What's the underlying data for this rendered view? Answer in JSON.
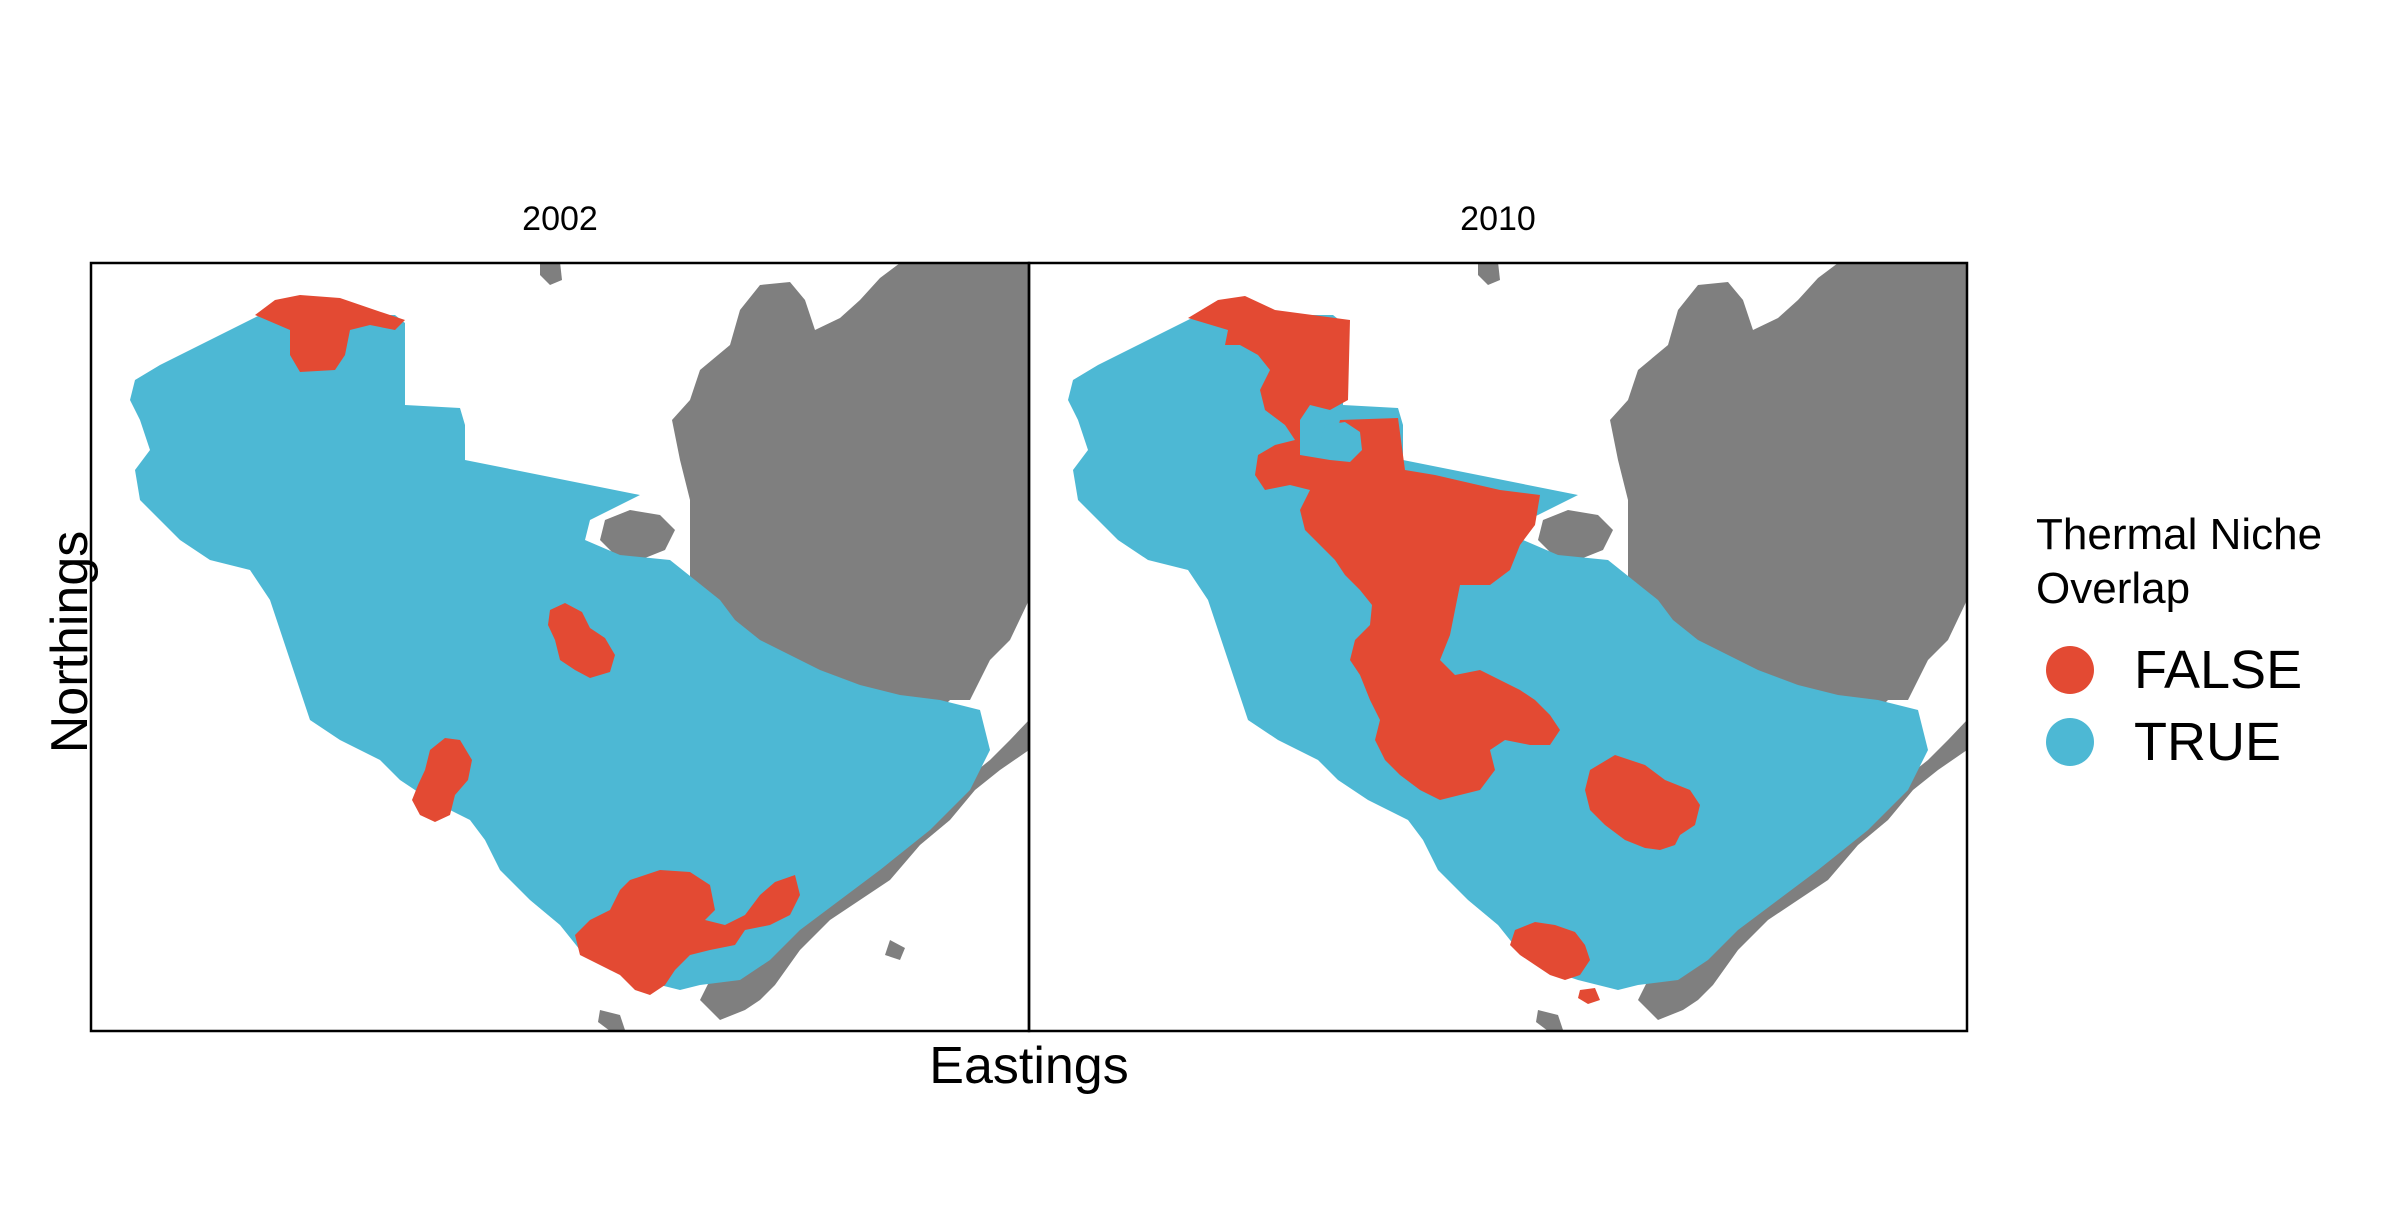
{
  "title": "",
  "x_axis_label": "Eastings",
  "y_axis_label": "Northings",
  "panels": [
    {
      "label": "2002"
    },
    {
      "label": "2010"
    }
  ],
  "legend": {
    "title_line1": "Thermal Niche",
    "title_line2": "Overlap",
    "items": [
      {
        "label": "FALSE",
        "color": "#e34a33"
      },
      {
        "label": "TRUE",
        "color": "#4db8d4"
      }
    ]
  },
  "colors": {
    "false": "#e34a33",
    "true": "#4db8d4",
    "land": "#7f7f7f"
  }
}
